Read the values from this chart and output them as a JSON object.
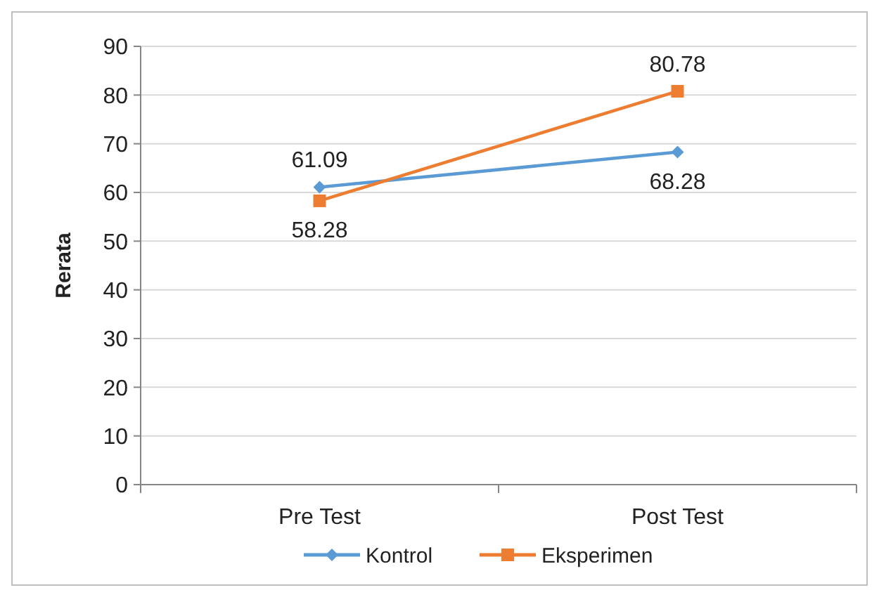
{
  "chart_data": {
    "type": "line",
    "ylabel": "Rerata",
    "categories": [
      "Pre Test",
      "Post Test"
    ],
    "series": [
      {
        "name": "Kontrol",
        "color": "#5b9bd5",
        "marker": "diamond",
        "values": [
          61.09,
          68.28
        ]
      },
      {
        "name": "Eksperimen",
        "color": "#ed7d31",
        "marker": "square",
        "values": [
          58.28,
          80.78
        ]
      }
    ],
    "ylim": [
      0,
      90
    ],
    "yticks": [
      0,
      10,
      20,
      30,
      40,
      50,
      60,
      70,
      80,
      90
    ],
    "grid": "y",
    "legend": "bottom",
    "data_labels": true
  }
}
